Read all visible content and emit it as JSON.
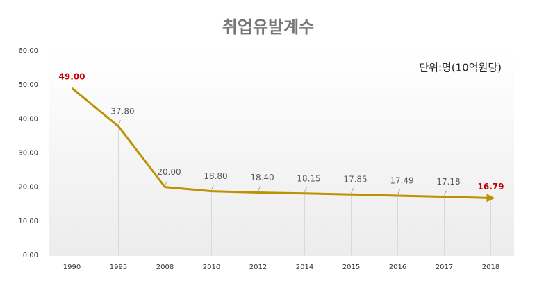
{
  "chart_data": {
    "type": "line",
    "title": "취업유발계수",
    "annotation": "단위:명(10억원당)",
    "categories": [
      "1990",
      "1995",
      "2008",
      "2010",
      "2012",
      "2014",
      "2015",
      "2016",
      "2017",
      "2018"
    ],
    "values": [
      49,
      37.8,
      20,
      18.8,
      18.4,
      18.15,
      17.85,
      17.49,
      17.18,
      16.79
    ],
    "value_labels": [
      "49.00",
      "37.80",
      "20.00",
      "18.80",
      "18.40",
      "18.15",
      "17.85",
      "17.49",
      "17.18",
      "16.79"
    ],
    "color": "#bf9000",
    "ylim": [
      0,
      60
    ],
    "yticks": [
      {
        "value": 0,
        "label": "0.00"
      },
      {
        "value": 10,
        "label": "10.00"
      },
      {
        "value": 20,
        "label": "20.00"
      },
      {
        "value": 30,
        "label": "30.00"
      },
      {
        "value": 40,
        "label": "40.00"
      },
      {
        "value": 50,
        "label": "50.00"
      },
      {
        "value": 60,
        "label": "60.00"
      }
    ]
  }
}
